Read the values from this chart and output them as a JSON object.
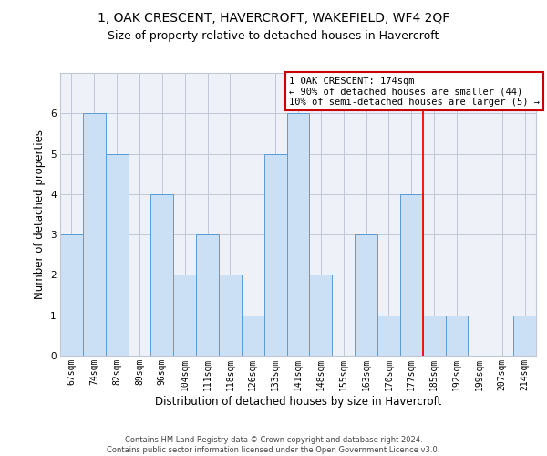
{
  "title": "1, OAK CRESCENT, HAVERCROFT, WAKEFIELD, WF4 2QF",
  "subtitle": "Size of property relative to detached houses in Havercroft",
  "xlabel": "Distribution of detached houses by size in Havercroft",
  "ylabel": "Number of detached properties",
  "categories": [
    "67sqm",
    "74sqm",
    "82sqm",
    "89sqm",
    "96sqm",
    "104sqm",
    "111sqm",
    "118sqm",
    "126sqm",
    "133sqm",
    "141sqm",
    "148sqm",
    "155sqm",
    "163sqm",
    "170sqm",
    "177sqm",
    "185sqm",
    "192sqm",
    "199sqm",
    "207sqm",
    "214sqm"
  ],
  "values": [
    3,
    6,
    5,
    0,
    4,
    2,
    3,
    2,
    1,
    5,
    6,
    2,
    0,
    3,
    1,
    4,
    1,
    1,
    0,
    0,
    1
  ],
  "bar_color": "#cce0f5",
  "bar_edge_color": "#5b9bd5",
  "grid_color": "#c0c8d8",
  "background_color": "#eef2f8",
  "red_line_index": 15.5,
  "annotation_text": "1 OAK CRESCENT: 174sqm\n← 90% of detached houses are smaller (44)\n10% of semi-detached houses are larger (5) →",
  "annotation_box_color": "#ffffff",
  "annotation_box_edge": "#cc0000",
  "footer": "Contains HM Land Registry data © Crown copyright and database right 2024.\nContains public sector information licensed under the Open Government Licence v3.0.",
  "ylim": [
    0,
    7
  ],
  "yticks": [
    0,
    1,
    2,
    3,
    4,
    5,
    6
  ],
  "title_fontsize": 10,
  "subtitle_fontsize": 9,
  "ylabel_fontsize": 8.5,
  "xlabel_fontsize": 8.5,
  "tick_fontsize": 7,
  "footer_fontsize": 6,
  "annot_fontsize": 7.5
}
